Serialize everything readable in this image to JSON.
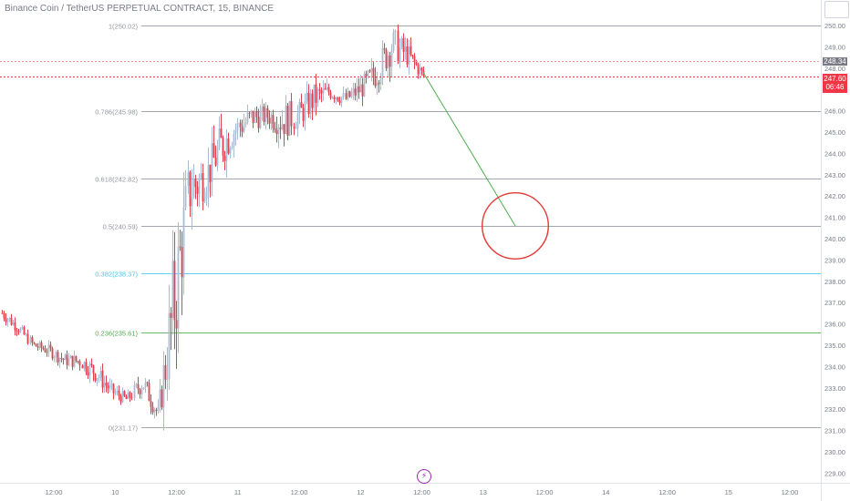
{
  "header": {
    "symbol_title": "Binance Coin / TetherUS PERPETUAL CONTRACT, 15, BINANCE"
  },
  "colors": {
    "bull": "#a8bcd4",
    "bear": "#e0414c",
    "fib_default": "#9598a1",
    "fib_blue": "#4fc3f7",
    "fib_green": "#4caf50",
    "trend_line": "#4caf50",
    "circle": "#e53935",
    "last_price_bg": "#f23645",
    "prev_price_bg": "#787b86"
  },
  "chart_data": {
    "type": "candlestick",
    "y_axis": {
      "ticks": [
        "250.00",
        "249.00",
        "248.00",
        "247.00",
        "246.00",
        "245.00",
        "244.00",
        "243.00",
        "242.00",
        "241.00",
        "240.00",
        "239.00",
        "238.00",
        "237.00",
        "236.00",
        "235.00",
        "234.00",
        "233.00",
        "232.00",
        "231.00",
        "230.00",
        "229.00"
      ],
      "range": [
        228.8,
        250.6
      ]
    },
    "x_axis": {
      "ticks": [
        "12:00",
        "10",
        "12:00",
        "11",
        "12:00",
        "12",
        "12:00",
        "13",
        "12:00",
        "14",
        "12:00",
        "15",
        "12:00"
      ]
    },
    "fib_levels": [
      {
        "label": "1(250.02)",
        "value": 250.02,
        "color": "default"
      },
      {
        "label": "0.786(245.98)",
        "value": 245.98,
        "color": "default"
      },
      {
        "label": "0.618(242.82)",
        "value": 242.82,
        "color": "default"
      },
      {
        "label": "0.5(240.59)",
        "value": 240.59,
        "color": "default"
      },
      {
        "label": "0.382(238.37)",
        "value": 238.37,
        "color": "blue"
      },
      {
        "label": "0.236(235.61)",
        "value": 235.61,
        "color": "green"
      },
      {
        "label": "0(231.17)",
        "value": 231.17,
        "color": "default"
      }
    ],
    "price_labels": {
      "prev": "248.34",
      "prev_value": 248.34,
      "last": "247.60",
      "last_value": 247.6,
      "countdown": "06:46"
    },
    "trend_line": {
      "from_value": 247.8,
      "to_value": 240.6,
      "circle_center_value": 240.6,
      "circle_radius_value": 1.55
    },
    "path_points": [
      [
        236.1,
        236.9
      ],
      [
        235.5,
        236.2
      ],
      [
        234.7,
        235.3
      ],
      [
        234.4,
        235.1
      ],
      [
        233.9,
        234.7
      ],
      [
        233.8,
        234.7
      ],
      [
        233.1,
        234.3
      ],
      [
        232.4,
        233.3
      ],
      [
        232.1,
        232.8
      ],
      [
        232.6,
        233.9
      ],
      [
        231.2,
        232.3
      ],
      [
        233.2,
        240.3
      ],
      [
        240.3,
        244.4
      ],
      [
        241.7,
        244.0
      ],
      [
        242.9,
        245.7
      ],
      [
        244.3,
        246.0
      ],
      [
        244.9,
        246.5
      ],
      [
        245.2,
        246.3
      ],
      [
        244.4,
        246.7
      ],
      [
        245.0,
        246.6
      ],
      [
        245.7,
        247.5
      ],
      [
        246.4,
        247.4
      ],
      [
        246.1,
        247.0
      ],
      [
        246.4,
        247.7
      ],
      [
        246.9,
        248.7
      ],
      [
        248.0,
        250.2
      ],
      [
        247.9,
        249.3
      ],
      [
        247.3,
        248.0
      ]
    ]
  }
}
